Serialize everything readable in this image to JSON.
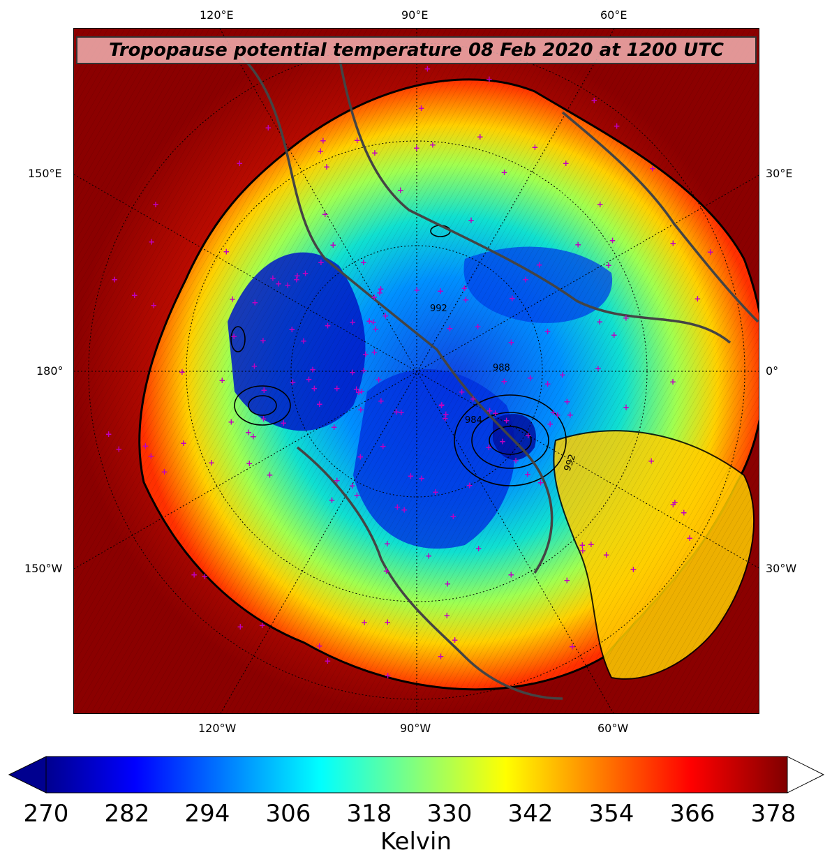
{
  "title": "Tropopause potential temperature 08 Feb 2020 at 1200 UTC",
  "longitude_labels": {
    "top": [
      "120°E",
      "90°E",
      "60°E"
    ],
    "bottom": [
      "120°W",
      "90°W",
      "60°W"
    ],
    "left": [
      "150°E",
      "180°",
      "150°W"
    ],
    "right": [
      "30°E",
      "0°",
      "30°W"
    ]
  },
  "contour_labels": [
    "992",
    "988",
    "984",
    "992"
  ],
  "colorbar": {
    "ticks": [
      "270",
      "282",
      "294",
      "306",
      "318",
      "330",
      "342",
      "354",
      "366",
      "378"
    ],
    "unit": "Kelvin",
    "min": 270,
    "max": 380,
    "colormap": "jet",
    "extend": "both"
  },
  "colors": {
    "cold_core": "#0018c8",
    "mid": "#00e0ff",
    "warm": "#ffff00",
    "hot": "#ff2000",
    "outer": "#8b0000",
    "marker": "#c000c0",
    "coastline": "#444444"
  }
}
